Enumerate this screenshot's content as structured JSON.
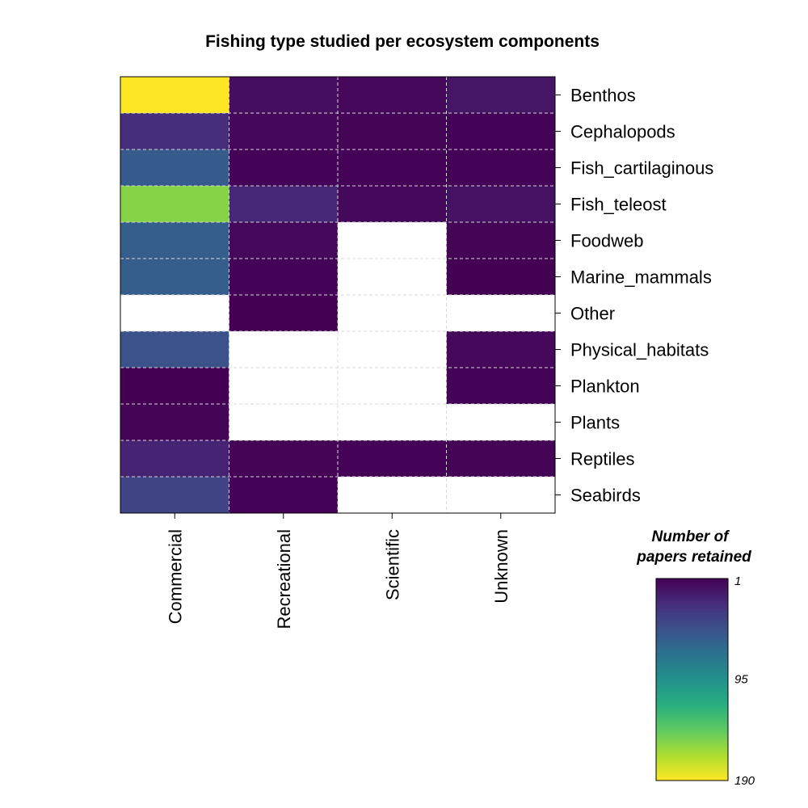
{
  "chart_data": {
    "type": "heatmap",
    "title": "Fishing type studied per ecosystem components",
    "x_categories": [
      "Commercial",
      "Recreational",
      "Scientific",
      "Unknown"
    ],
    "y_categories": [
      "Benthos",
      "Cephalopods",
      "Fish_cartilaginous",
      "Fish_teleost",
      "Foodweb",
      "Marine_mammals",
      "Other",
      "Physical_habitats",
      "Plankton",
      "Plants",
      "Reptiles",
      "Seabirds"
    ],
    "values": [
      [
        190,
        8,
        5,
        12
      ],
      [
        25,
        4,
        3,
        2
      ],
      [
        55,
        2,
        2,
        2
      ],
      [
        155,
        22,
        5,
        10
      ],
      [
        57,
        5,
        null,
        3
      ],
      [
        57,
        2,
        null,
        1
      ],
      [
        null,
        1,
        null,
        null
      ],
      [
        48,
        null,
        null,
        5
      ],
      [
        1,
        null,
        null,
        2
      ],
      [
        3,
        null,
        null,
        null
      ],
      [
        20,
        3,
        2,
        3
      ],
      [
        40,
        2,
        null,
        null
      ]
    ],
    "colorbar": {
      "title_line1": "Number of",
      "title_line2": "papers retained",
      "min": 1,
      "max": 190,
      "ticks": [
        "1",
        "95",
        "190"
      ],
      "colors_low_to_high": [
        "#440154",
        "#472D7B",
        "#3B528B",
        "#2C728E",
        "#21918C",
        "#28AE80",
        "#5EC962",
        "#ADDC30",
        "#FDE725"
      ],
      "missing_color": "#FFFFFF",
      "grid_line_color": "#D9D9D9"
    }
  }
}
